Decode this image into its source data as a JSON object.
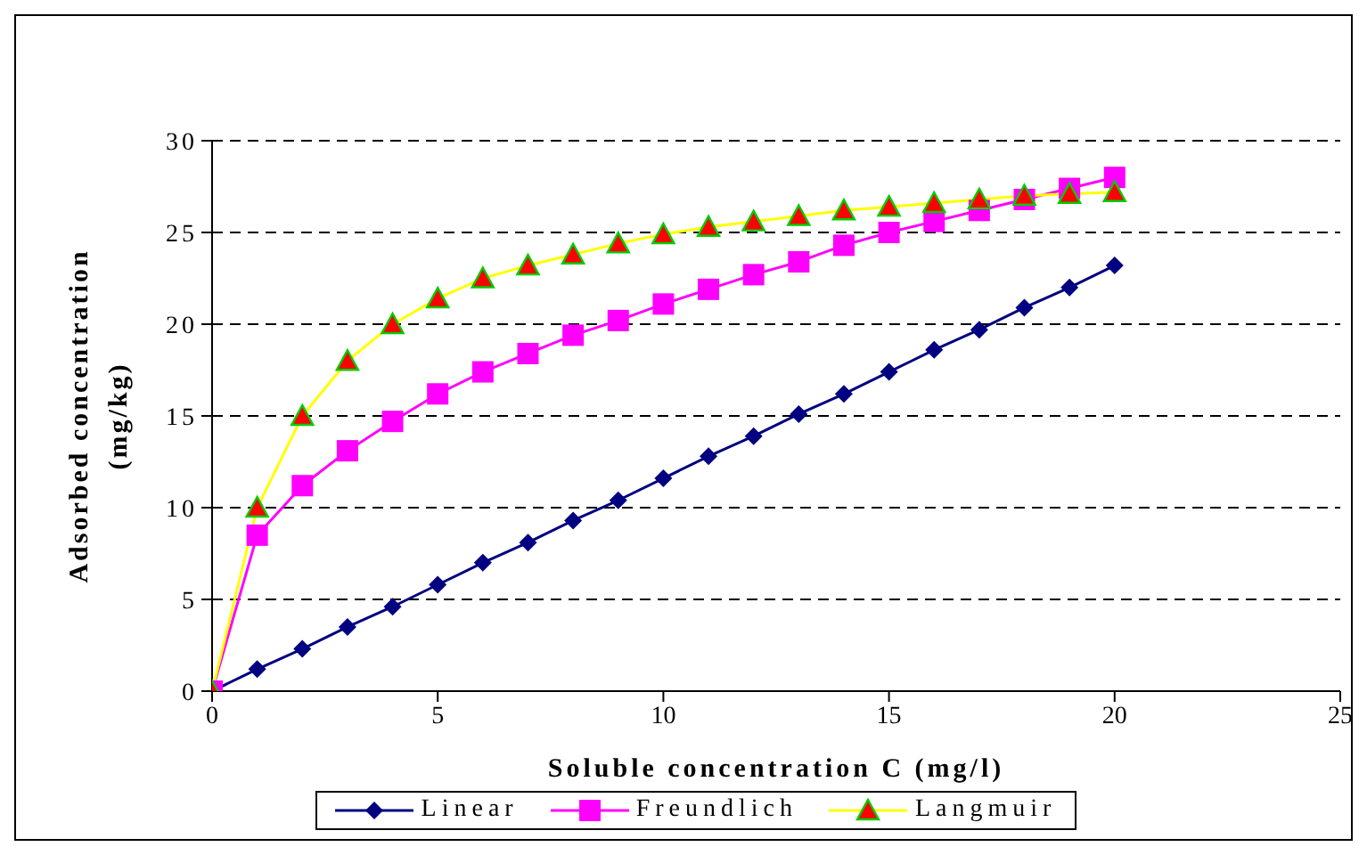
{
  "chart_data": {
    "type": "line",
    "xlabel": "Soluble concentration C (mg/l)",
    "ylabel": "Adsorbed concentration (mg/kg)",
    "x": [
      0,
      1,
      2,
      3,
      4,
      5,
      6,
      7,
      8,
      9,
      10,
      11,
      12,
      13,
      14,
      15,
      16,
      17,
      18,
      19,
      20
    ],
    "series": [
      {
        "name": "Linear",
        "color": "#000080",
        "marker": "diamond",
        "values": [
          0,
          1.2,
          2.3,
          3.5,
          4.6,
          5.8,
          7.0,
          8.1,
          9.3,
          10.4,
          11.6,
          12.8,
          13.9,
          15.1,
          16.2,
          17.4,
          18.6,
          19.7,
          20.9,
          22.0,
          23.2
        ]
      },
      {
        "name": "Freundlich",
        "color": "#ff00ff",
        "marker": "square",
        "values": [
          0,
          8.5,
          11.2,
          13.1,
          14.7,
          16.2,
          17.4,
          18.4,
          19.4,
          20.2,
          21.1,
          21.9,
          22.7,
          23.4,
          24.3,
          25.0,
          25.6,
          26.2,
          26.8,
          27.4,
          28.0
        ]
      },
      {
        "name": "Langmuir",
        "color": "#ffff00",
        "marker": "triangle",
        "values": [
          0,
          10,
          15,
          18,
          20,
          21.4,
          22.5,
          23.2,
          23.8,
          24.4,
          24.9,
          25.3,
          25.6,
          25.9,
          26.2,
          26.4,
          26.6,
          26.8,
          27.0,
          27.1,
          27.2
        ]
      }
    ],
    "xlim": [
      0,
      25
    ],
    "xticks": [
      0,
      5,
      10,
      15,
      20,
      25
    ],
    "ylim": [
      0,
      30
    ],
    "yticks": [
      0,
      5,
      10,
      15,
      20,
      25,
      30
    ],
    "grid": "y",
    "legend": "bottom"
  }
}
